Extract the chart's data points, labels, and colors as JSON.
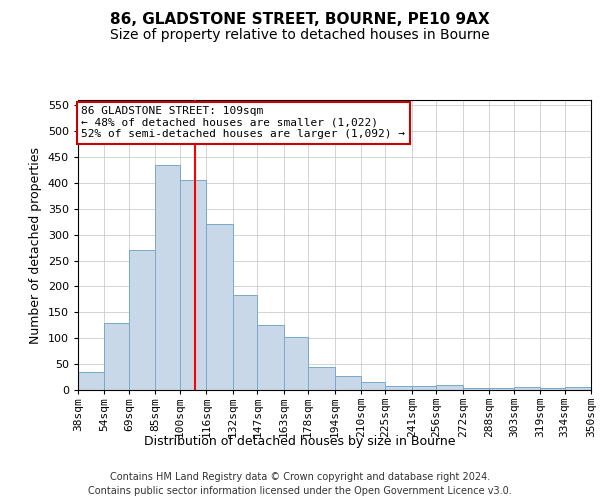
{
  "title": "86, GLADSTONE STREET, BOURNE, PE10 9AX",
  "subtitle": "Size of property relative to detached houses in Bourne",
  "xlabel": "Distribution of detached houses by size in Bourne",
  "ylabel": "Number of detached properties",
  "bin_edges": [
    38,
    54,
    69,
    85,
    100,
    116,
    132,
    147,
    163,
    178,
    194,
    210,
    225,
    241,
    256,
    272,
    288,
    303,
    319,
    334,
    350
  ],
  "bar_heights": [
    35,
    130,
    270,
    435,
    405,
    320,
    183,
    125,
    103,
    44,
    28,
    16,
    8,
    8,
    10,
    3,
    3,
    5,
    3,
    5
  ],
  "bar_color": "#c8d8e8",
  "bar_edge_color": "#7aa8c8",
  "red_line_x": 109,
  "ylim": [
    0,
    560
  ],
  "yticks": [
    0,
    50,
    100,
    150,
    200,
    250,
    300,
    350,
    400,
    450,
    500,
    550
  ],
  "annotation_title": "86 GLADSTONE STREET: 109sqm",
  "annotation_line2": "← 48% of detached houses are smaller (1,022)",
  "annotation_line3": "52% of semi-detached houses are larger (1,092) →",
  "annotation_box_color": "#ffffff",
  "annotation_box_edge": "#cc0000",
  "footer_line1": "Contains HM Land Registry data © Crown copyright and database right 2024.",
  "footer_line2": "Contains public sector information licensed under the Open Government Licence v3.0.",
  "title_fontsize": 11,
  "subtitle_fontsize": 10,
  "axis_label_fontsize": 9,
  "tick_fontsize": 8,
  "annotation_fontsize": 8,
  "footer_fontsize": 7
}
